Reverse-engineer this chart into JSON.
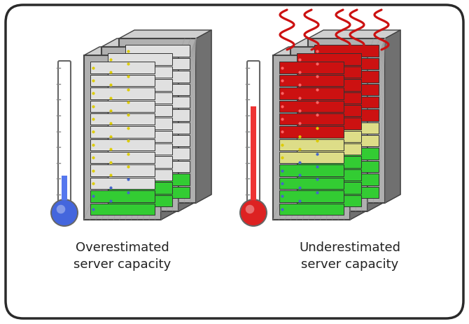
{
  "bg_color": "#ffffff",
  "border_color": "#2a2a2a",
  "title_left": "Overestimated\nserver capacity",
  "title_right": "Underestimated\nserver capacity",
  "font_size_title": 13,
  "server_face_color": "#b0b0b0",
  "server_side_color": "#707070",
  "server_top_color": "#d0d0d0",
  "server_edge_color": "#444444",
  "hatch_color": "#888888",
  "slot_white": "#e0e0e0",
  "slot_green": "#33cc33",
  "slot_yellow": "#dddd88",
  "slot_red": "#cc1111",
  "dot_yellow": "#ddcc00",
  "dot_blue": "#4466cc",
  "thermo_blue_fill": "#5577ee",
  "thermo_blue_bulb": "#4466dd",
  "thermo_red_fill": "#ee3333",
  "thermo_red_bulb": "#dd2222",
  "thermo_tube_color": "#ffffff",
  "thermo_outline": "#666666",
  "heat_red": "#cc1111",
  "label_color": "#222222"
}
